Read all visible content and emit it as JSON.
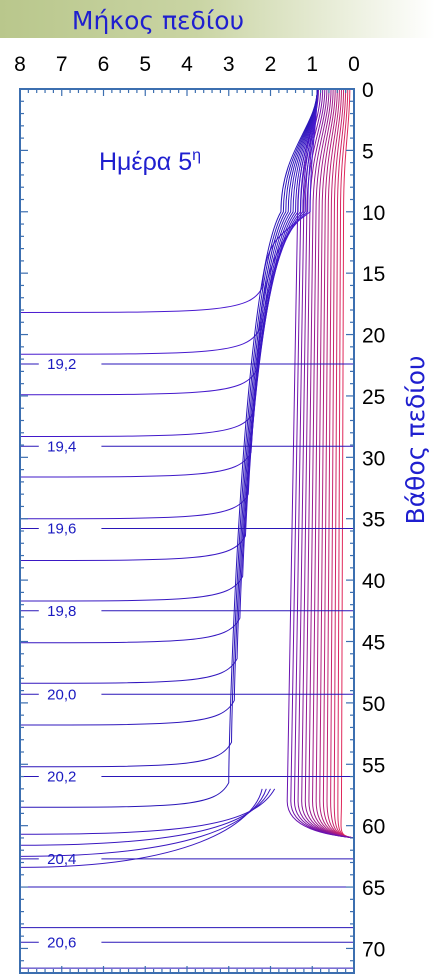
{
  "chart_data": {
    "type": "contour",
    "xlabel": "Μήκος πεδίου",
    "ylabel": "Βάθος πεδίου",
    "annotation_main": "Ημέρα 5",
    "annotation_sup": "η",
    "x_ticks": [
      8,
      7,
      6,
      5,
      4,
      3,
      2,
      1,
      0
    ],
    "y_ticks": [
      0,
      5,
      10,
      15,
      20,
      25,
      30,
      35,
      40,
      45,
      50,
      55,
      60,
      65,
      70
    ],
    "xlim": [
      8,
      0
    ],
    "ylim": [
      0,
      72
    ],
    "contour_labels": [
      {
        "text": "19,2",
        "x": 7.0,
        "y": 22.4
      },
      {
        "text": "19,4",
        "x": 7.0,
        "y": 29.1
      },
      {
        "text": "19,6",
        "x": 7.0,
        "y": 35.8
      },
      {
        "text": "19,8",
        "x": 7.0,
        "y": 42.5
      },
      {
        "text": "20,0",
        "x": 7.0,
        "y": 49.3
      },
      {
        "text": "20,2",
        "x": 7.0,
        "y": 56.0
      },
      {
        "text": "20,4",
        "x": 7.0,
        "y": 62.7
      },
      {
        "text": "20,6",
        "x": 7.0,
        "y": 69.5
      }
    ],
    "horizontal_contour_depths": [
      18.2,
      21.6,
      24.9,
      28.3,
      31.6,
      35.0,
      38.4,
      41.7,
      45.1,
      48.4,
      51.8,
      55.2,
      58.5
    ],
    "deep_flat_depths": [
      65.0,
      68.3,
      71.6
    ]
  }
}
